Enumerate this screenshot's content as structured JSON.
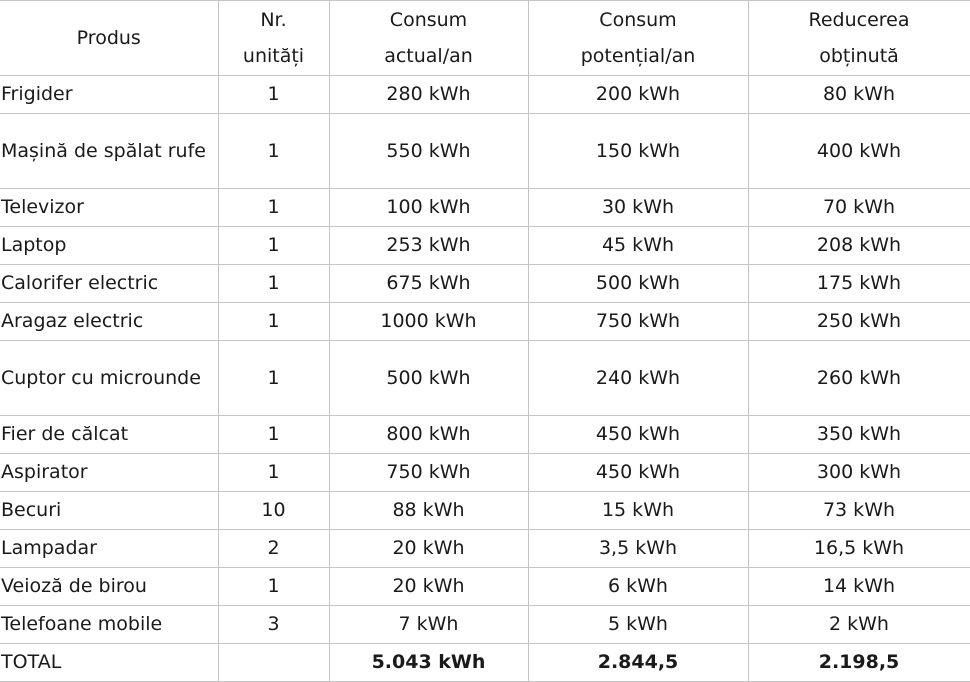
{
  "headers": [
    {
      "line1": "Produs",
      "line2": ""
    },
    {
      "line1": "Nr.",
      "line2": "unități"
    },
    {
      "line1": "Consum",
      "line2": "actual/an"
    },
    {
      "line1": "Consum",
      "line2": "potențial/an"
    },
    {
      "line1": "Reducerea",
      "line2": "obținută"
    }
  ],
  "rows": [
    {
      "name": "Frigider",
      "units": "1",
      "actual": "280 kWh",
      "potential": "200 kWh",
      "reduction": "80 kWh"
    },
    {
      "name": "Mașină de spălat rufe",
      "units": "1",
      "actual": "550 kWh",
      "potential": "150 kWh",
      "reduction": "400 kWh"
    },
    {
      "name": "Televizor",
      "units": "1",
      "actual": "100 kWh",
      "potential": "30 kWh",
      "reduction": "70 kWh"
    },
    {
      "name": "Laptop",
      "units": "1",
      "actual": "253 kWh",
      "potential": "45 kWh",
      "reduction": "208 kWh"
    },
    {
      "name": "Calorifer electric",
      "units": "1",
      "actual": "675 kWh",
      "potential": "500 kWh",
      "reduction": "175 kWh"
    },
    {
      "name": "Aragaz electric",
      "units": "1",
      "actual": "1000 kWh",
      "potential": "750 kWh",
      "reduction": "250 kWh"
    },
    {
      "name": "Cuptor cu microunde",
      "units": "1",
      "actual": "500 kWh",
      "potential": "240 kWh",
      "reduction": "260 kWh"
    },
    {
      "name": "Fier de călcat",
      "units": "1",
      "actual": "800 kWh",
      "potential": "450 kWh",
      "reduction": "350 kWh"
    },
    {
      "name": "Aspirator",
      "units": "1",
      "actual": "750 kWh",
      "potential": "450 kWh",
      "reduction": "300 kWh"
    },
    {
      "name": "Becuri",
      "units": "10",
      "actual": "88 kWh",
      "potential": "15 kWh",
      "reduction": "73 kWh"
    },
    {
      "name": "Lampadar",
      "units": "2",
      "actual": "20 kWh",
      "potential": "3,5 kWh",
      "reduction": "16,5 kWh"
    },
    {
      "name": "Veioză de birou",
      "units": "1",
      "actual": "20 kWh",
      "potential": "6 kWh",
      "reduction": "14 kWh"
    },
    {
      "name": "Telefoane mobile",
      "units": "3",
      "actual": "7 kWh",
      "potential": "5 kWh",
      "reduction": "2 kWh"
    }
  ],
  "total": {
    "name": "TOTAL",
    "units": "",
    "actual": "5.043 kWh",
    "potential": "2.844,5",
    "reduction": "2.198,5"
  }
}
